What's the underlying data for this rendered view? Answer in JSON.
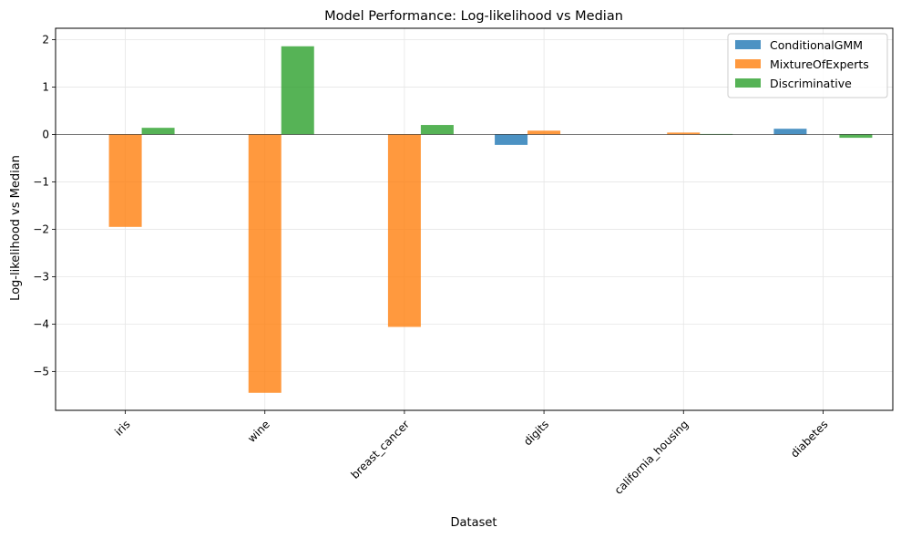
{
  "chart_data": {
    "type": "bar",
    "title": "Model Performance: Log-likelihood vs Median",
    "xlabel": "Dataset",
    "ylabel": "Log-likelihood vs Median",
    "categories": [
      "iris",
      "wine",
      "breast_cancer",
      "digits",
      "california_housing",
      "diabetes"
    ],
    "series": [
      {
        "name": "ConditionalGMM",
        "color": "#1f77b4",
        "values": [
          null,
          null,
          null,
          -0.22,
          null,
          0.12
        ]
      },
      {
        "name": "MixtureOfExperts",
        "color": "#ff7f0e",
        "values": [
          -1.95,
          -5.45,
          -4.06,
          0.08,
          0.04,
          null
        ]
      },
      {
        "name": "Discriminative",
        "color": "#2ca02c",
        "values": [
          0.14,
          1.86,
          0.2,
          null,
          0.01,
          -0.07
        ]
      }
    ],
    "ylim": [
      -5.82,
      2.24
    ],
    "yticks": [
      2,
      1,
      0,
      -1,
      -2,
      -3,
      -4,
      -5
    ],
    "ytick_labels": [
      "2",
      "1",
      "0",
      "−1",
      "−2",
      "−3",
      "−4",
      "−5"
    ],
    "grid": true,
    "zero_line": true,
    "legend_position": "top-right",
    "bar_opacity": 0.8
  }
}
